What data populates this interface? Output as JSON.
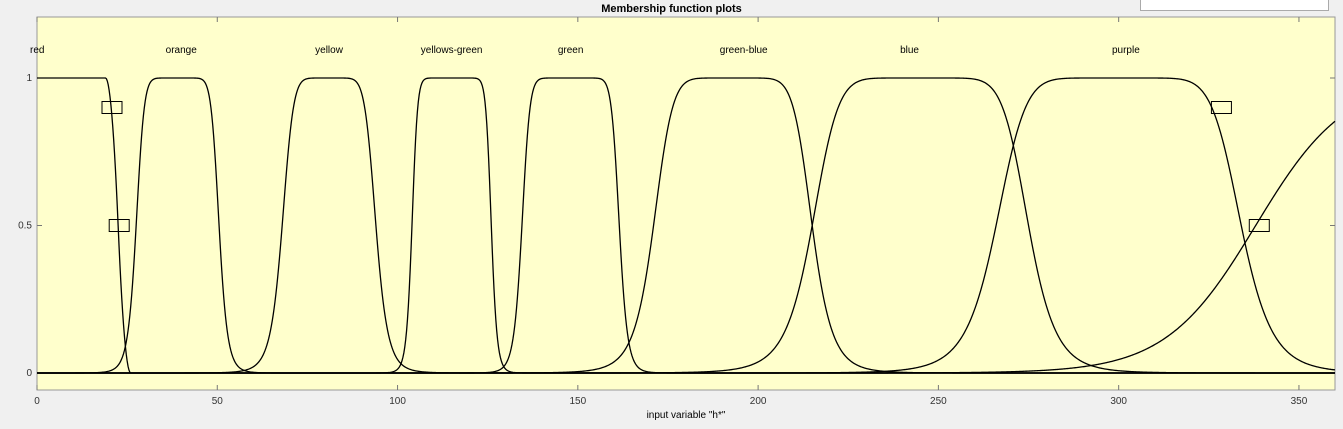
{
  "window": {
    "title": "Membership function plots"
  },
  "chart_data": {
    "type": "line",
    "title": "Membership function plots",
    "xlabel": "input variable \"h*\"",
    "ylabel": "",
    "xlim": [
      0,
      360
    ],
    "ylim": [
      0,
      1
    ],
    "x_ticks": [
      "0",
      "50",
      "100",
      "150",
      "200",
      "250",
      "300",
      "350"
    ],
    "y_ticks": [
      "0",
      "0.5",
      "1"
    ],
    "grid": false,
    "background": "#ffffcc",
    "series": [
      {
        "name": "red",
        "shape": "zmf",
        "params": [
          19,
          26
        ]
      },
      {
        "name": "orange",
        "shape": "gbellmf",
        "params": [
          11.5,
          5,
          39
        ]
      },
      {
        "name": "yellow",
        "shape": "gbellmf",
        "params": [
          13,
          4,
          81
        ]
      },
      {
        "name": "yellows-green",
        "shape": "gbellmf",
        "params": [
          11,
          7,
          115
        ]
      },
      {
        "name": "green",
        "shape": "gbellmf",
        "params": [
          13.5,
          6,
          148
        ]
      },
      {
        "name": "green-blue",
        "shape": "gbellmf",
        "params": [
          22,
          4,
          193
        ]
      },
      {
        "name": "blue",
        "shape": "gbellmf",
        "params": [
          30,
          4,
          245
        ]
      },
      {
        "name": "purple",
        "shape": "gbellmf",
        "params": [
          34,
          4,
          300
        ]
      },
      {
        "name": "",
        "shape": "sigmf",
        "params": [
          0.08,
          338
        ]
      }
    ],
    "series_label_x": [
      0,
      40,
      81,
      115,
      148,
      196,
      242,
      302,
      359
    ],
    "markers": [
      {
        "x": 20.8,
        "y": 0.9
      },
      {
        "x": 22.8,
        "y": 0.5
      },
      {
        "x": 328.5,
        "y": 0.9
      },
      {
        "x": 339,
        "y": 0.5
      }
    ]
  }
}
